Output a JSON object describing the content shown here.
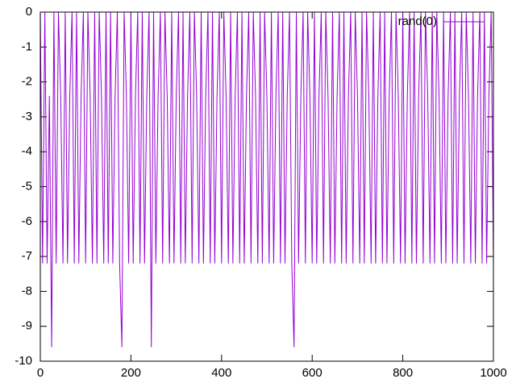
{
  "chart_data": {
    "type": "line",
    "x": [
      0,
      5,
      10,
      15,
      20,
      25,
      30,
      35,
      40,
      45,
      50,
      55,
      60,
      65,
      70,
      75,
      80,
      85,
      90,
      95,
      100,
      105,
      110,
      115,
      120,
      125,
      130,
      135,
      140,
      145,
      150,
      155,
      160,
      165,
      170,
      175,
      180,
      185,
      190,
      195,
      200,
      205,
      210,
      215,
      220,
      225,
      230,
      235,
      240,
      245,
      250,
      255,
      260,
      265,
      270,
      275,
      280,
      285,
      290,
      295,
      300,
      305,
      310,
      315,
      320,
      325,
      330,
      335,
      340,
      345,
      350,
      355,
      360,
      365,
      370,
      375,
      380,
      385,
      390,
      395,
      400,
      405,
      410,
      415,
      420,
      425,
      430,
      435,
      440,
      445,
      450,
      455,
      460,
      465,
      470,
      475,
      480,
      485,
      490,
      495,
      500,
      505,
      510,
      515,
      520,
      525,
      530,
      535,
      540,
      545,
      550,
      555,
      560,
      565,
      570,
      575,
      580,
      585,
      590,
      595,
      600,
      605,
      610,
      615,
      620,
      625,
      630,
      635,
      640,
      645,
      650,
      655,
      660,
      665,
      670,
      675,
      680,
      685,
      690,
      695,
      700,
      705,
      710,
      715,
      720,
      725,
      730,
      735,
      740,
      745,
      750,
      755,
      760,
      765,
      770,
      775,
      780,
      785,
      790,
      795,
      800,
      805,
      810,
      815,
      820,
      825,
      830,
      835,
      840,
      845,
      850,
      855,
      860,
      865,
      870,
      875,
      880,
      885,
      890,
      895,
      900,
      905,
      910,
      915,
      920,
      925,
      930,
      935,
      940,
      945,
      950,
      955,
      960,
      965,
      970,
      975,
      980,
      985,
      990,
      995,
      1000
    ],
    "series": [
      {
        "name": "rand(0)",
        "color": "#9400d3",
        "values": [
          0,
          -7.2,
          0,
          -7.2,
          -2.4,
          -9.6,
          0,
          -7.2,
          0,
          -2.4,
          -7.2,
          0,
          -7.2,
          -2.4,
          0,
          -7.2,
          0,
          -7.2,
          -2.4,
          0,
          -7.2,
          0,
          -2.4,
          -7.2,
          0,
          -7.2,
          0,
          -2.4,
          -7.2,
          0,
          -7.2,
          0,
          -7.2,
          -2.4,
          0,
          -7.2,
          -9.6,
          0,
          -2.4,
          -7.2,
          0,
          -7.2,
          -2.4,
          0,
          -7.2,
          0,
          -7.2,
          -2.4,
          0,
          -9.6,
          0,
          -7.2,
          -2.4,
          0,
          -7.2,
          0,
          -2.4,
          -7.2,
          0,
          -7.2,
          -2.4,
          0,
          -7.2,
          0,
          -7.2,
          -2.4,
          0,
          -7.2,
          0,
          -2.4,
          -7.2,
          0,
          -7.2,
          -2.4,
          0,
          -7.2,
          0,
          -7.2,
          -2.4,
          0,
          -7.2,
          0,
          -2.4,
          -7.2,
          0,
          -7.2,
          -2.4,
          0,
          -7.2,
          0,
          -7.2,
          -2.4,
          0,
          -7.2,
          0,
          -2.4,
          -7.2,
          0,
          -7.2,
          0,
          -2.4,
          -7.2,
          0,
          -7.2,
          -2.4,
          0,
          -7.2,
          0,
          -7.2,
          -2.4,
          0,
          -7.2,
          -9.6,
          0,
          -7.2,
          -2.4,
          0,
          -7.2,
          0,
          -2.4,
          -7.2,
          0,
          -7.2,
          -2.4,
          0,
          -7.2,
          0,
          -2.4,
          -7.2,
          0,
          -7.2,
          -2.4,
          0,
          -7.2,
          0,
          -7.2,
          -2.4,
          0,
          -7.2,
          0,
          -2.4,
          -7.2,
          0,
          -7.2,
          0,
          -2.4,
          -7.2,
          0,
          -7.2,
          -2.4,
          0,
          -7.2,
          0,
          -7.2,
          -2.4,
          0,
          -7.2,
          0,
          -2.4,
          -7.2,
          0,
          -7.2,
          -2.4,
          0,
          -7.2,
          0,
          -7.2,
          -2.4,
          0,
          -7.2,
          0,
          -2.4,
          -7.2,
          0,
          -7.2,
          0,
          -2.4,
          -7.2,
          0,
          -7.2,
          -2.4,
          0,
          -7.2,
          0,
          -7.2,
          -2.4,
          0,
          -7.2,
          0,
          -2.4,
          -7.2,
          0,
          -7.2,
          -2.4,
          0,
          -7.2,
          0,
          -7.2,
          -2.4,
          0,
          -7.2
        ]
      }
    ],
    "xlim": [
      0,
      1000
    ],
    "xticks": [
      0,
      200,
      400,
      600,
      800,
      1000
    ],
    "ylim": [
      -10,
      0
    ],
    "yticks": [
      -10,
      -9,
      -8,
      -7,
      -6,
      -5,
      -4,
      -3,
      -2,
      -1,
      0
    ],
    "legend": "top-right"
  }
}
